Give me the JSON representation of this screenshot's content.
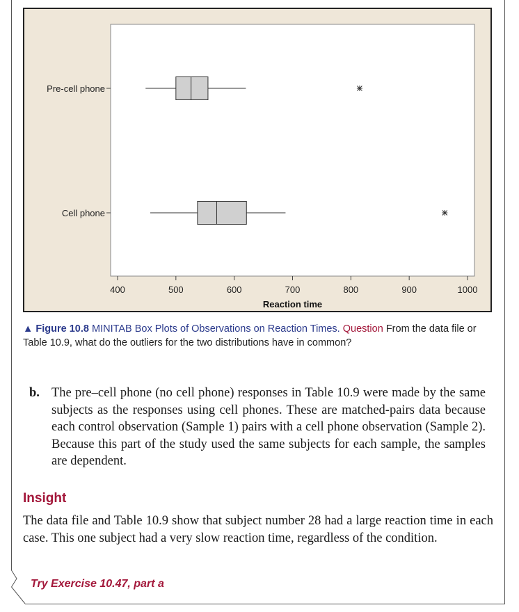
{
  "chart_data": {
    "type": "boxplot",
    "orientation": "horizontal",
    "xlabel": "Reaction time",
    "xlim": [
      400,
      1000
    ],
    "xticks": [
      400,
      500,
      600,
      700,
      800,
      900,
      1000
    ],
    "series": [
      {
        "name": "Pre-cell phone",
        "whisker_low": 448,
        "q1": 500,
        "median": 526,
        "q3": 555,
        "whisker_high": 620,
        "outliers": [
          815
        ]
      },
      {
        "name": "Cell phone",
        "whisker_low": 456,
        "q1": 537,
        "median": 570,
        "q3": 621,
        "whisker_high": 688,
        "outliers": [
          961
        ]
      }
    ],
    "box_color": "#d0d0d0",
    "background": "#efe7d9"
  },
  "caption": {
    "marker": "▲",
    "label": "Figure 10.8",
    "title": "MINITAB Box Plots of Observations on Reaction Times.",
    "question_label": "Question",
    "question": "From the data file or Table 10.9, what do the outliers for the two distributions have in common?"
  },
  "part_b": {
    "marker": "b.",
    "text": "The pre–cell phone (no cell phone) responses in Table 10.9 were made by the same subjects as the responses using cell phones. These are matched-pairs data because each control observation (Sample 1) pairs with a cell phone observation (Sample 2). Because this part of the study used the same subjects for each sample, the samples are dependent."
  },
  "insight": {
    "heading": "Insight",
    "text": "The data file and Table 10.9 show that subject number 28 had a large reaction time in each case. This one subject had a very slow reaction time, regardless of the condition."
  },
  "exercise": {
    "label": "Try Exercise 10.47, part a"
  }
}
